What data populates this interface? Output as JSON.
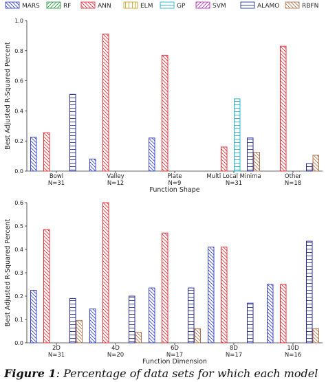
{
  "legend": [
    {
      "name": "MARS",
      "color": "#3b48c9",
      "pattern": "diag-back"
    },
    {
      "name": "RF",
      "color": "#2e9b45",
      "pattern": "diag-fwd"
    },
    {
      "name": "ANN",
      "color": "#e8323a",
      "pattern": "diag-back"
    },
    {
      "name": "ELM",
      "color": "#c8a52a",
      "pattern": "vert"
    },
    {
      "name": "GP",
      "color": "#27b4c9",
      "pattern": "horiz"
    },
    {
      "name": "SVM",
      "color": "#b13ab8",
      "pattern": "diag-fwd"
    },
    {
      "name": "ALAMO",
      "color": "#2a2f9e",
      "pattern": "horiz"
    },
    {
      "name": "RBFN",
      "color": "#b0764f",
      "pattern": "diag-back"
    }
  ],
  "chart_data": [
    {
      "type": "bar",
      "xlabel": "Function Shape",
      "ylabel": "Best Adjusted R-Squared Percent",
      "ylim": [
        0,
        1.0
      ],
      "yticks": [
        0.0,
        0.2,
        0.4,
        0.6,
        0.8,
        1.0
      ],
      "categories": [
        "Bowl\nN=31",
        "Valley\nN=12",
        "Plate\nN=9",
        "Multi Local Minima\nN=31",
        "Other\nN=18"
      ],
      "series": [
        {
          "name": "MARS",
          "values": [
            0.225,
            0.08,
            0.22,
            0.0,
            0.0
          ]
        },
        {
          "name": "RF",
          "values": [
            0.0,
            0.0,
            0.0,
            0.0,
            0.0
          ]
        },
        {
          "name": "ANN",
          "values": [
            0.255,
            0.91,
            0.77,
            0.16,
            0.83
          ]
        },
        {
          "name": "ELM",
          "values": [
            0.0,
            0.0,
            0.0,
            0.0,
            0.0
          ]
        },
        {
          "name": "GP",
          "values": [
            0.0,
            0.0,
            0.0,
            0.48,
            0.0
          ]
        },
        {
          "name": "SVM",
          "values": [
            0.0,
            0.0,
            0.0,
            0.0,
            0.0
          ]
        },
        {
          "name": "ALAMO",
          "values": [
            0.51,
            0.0,
            0.0,
            0.22,
            0.05
          ]
        },
        {
          "name": "RBFN",
          "values": [
            0.0,
            0.0,
            0.0,
            0.125,
            0.105
          ]
        }
      ]
    },
    {
      "type": "bar",
      "xlabel": "Function Dimension",
      "ylabel": "Best Adjusted R-Squared Percent",
      "ylim": [
        0,
        0.6
      ],
      "yticks": [
        0.0,
        0.1,
        0.2,
        0.3,
        0.4,
        0.5,
        0.6
      ],
      "categories": [
        "2D\nN=31",
        "4D\nN=20",
        "6D\nN=17",
        "8D\nN=17",
        "10D\nN=16"
      ],
      "series": [
        {
          "name": "MARS",
          "values": [
            0.225,
            0.145,
            0.235,
            0.41,
            0.25
          ]
        },
        {
          "name": "RF",
          "values": [
            0.0,
            0.0,
            0.0,
            0.0,
            0.0
          ]
        },
        {
          "name": "ANN",
          "values": [
            0.485,
            0.6,
            0.47,
            0.41,
            0.25
          ]
        },
        {
          "name": "ELM",
          "values": [
            0.0,
            0.0,
            0.0,
            0.0,
            0.0
          ]
        },
        {
          "name": "GP",
          "values": [
            0.0,
            0.0,
            0.0,
            0.0,
            0.0
          ]
        },
        {
          "name": "SVM",
          "values": [
            0.0,
            0.0,
            0.0,
            0.0,
            0.0
          ]
        },
        {
          "name": "ALAMO",
          "values": [
            0.19,
            0.2,
            0.235,
            0.17,
            0.435
          ]
        },
        {
          "name": "RBFN",
          "values": [
            0.095,
            0.045,
            0.06,
            0.0,
            0.06
          ]
        }
      ]
    }
  ],
  "caption": {
    "prefix": "Figure 1",
    "text": "Percentage of data sets for which each model"
  }
}
